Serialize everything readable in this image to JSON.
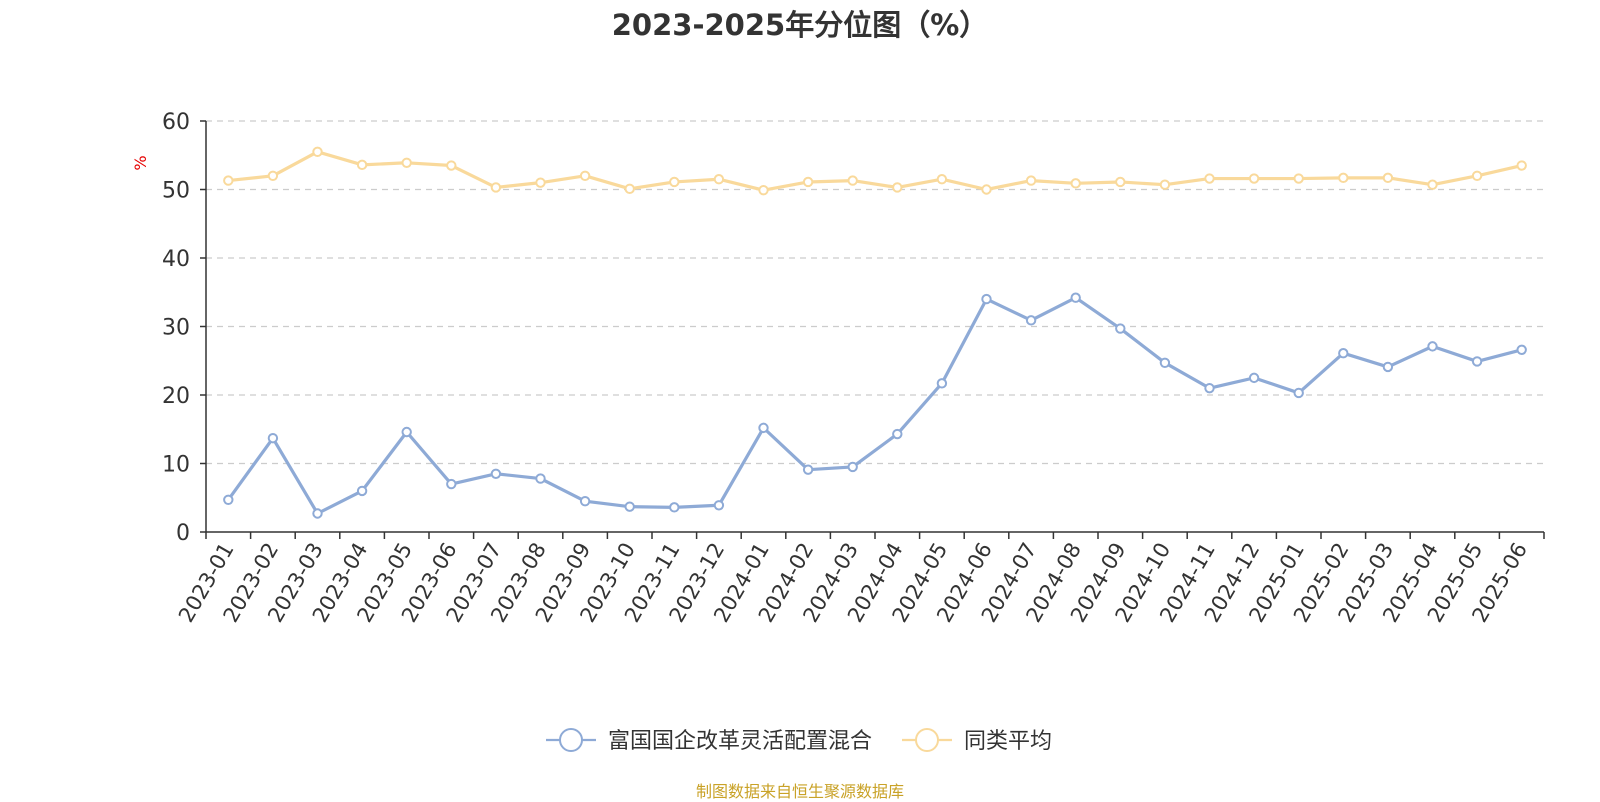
{
  "chart_data": {
    "type": "line",
    "title": "2023-2025年分位图（%）",
    "ylabel": "%",
    "ylim": [
      0,
      60
    ],
    "yticks": [
      0,
      10,
      20,
      30,
      40,
      50,
      60
    ],
    "grid": true,
    "legend_position": "bottom",
    "categories": [
      "2023-01",
      "2023-02",
      "2023-03",
      "2023-04",
      "2023-05",
      "2023-06",
      "2023-07",
      "2023-08",
      "2023-09",
      "2023-10",
      "2023-11",
      "2023-12",
      "2024-01",
      "2024-02",
      "2024-03",
      "2024-04",
      "2024-05",
      "2024-06",
      "2024-07",
      "2024-08",
      "2024-09",
      "2024-10",
      "2024-11",
      "2024-12",
      "2025-01",
      "2025-02",
      "2025-03",
      "2025-04",
      "2025-05",
      "2025-06"
    ],
    "series": [
      {
        "name": "富国国企改革灵活配置混合",
        "color": "#8eaad6",
        "values": [
          4.7,
          13.7,
          2.7,
          6.0,
          14.6,
          7.0,
          8.5,
          7.8,
          4.5,
          3.7,
          3.6,
          3.9,
          15.2,
          9.1,
          9.5,
          14.3,
          21.7,
          34.0,
          30.9,
          34.2,
          29.7,
          24.7,
          21.0,
          22.5,
          20.3,
          26.1,
          24.1,
          27.1,
          24.9,
          26.6
        ]
      },
      {
        "name": "同类平均",
        "color": "#f9d99b",
        "values": [
          51.3,
          52.0,
          55.5,
          53.6,
          53.9,
          53.5,
          50.3,
          51.0,
          52.0,
          50.1,
          51.1,
          51.5,
          49.9,
          51.1,
          51.3,
          50.3,
          51.5,
          50.0,
          51.3,
          50.9,
          51.1,
          50.7,
          51.6,
          51.6,
          51.6,
          51.7,
          51.7,
          50.7,
          52.0,
          53.5
        ]
      }
    ]
  },
  "footer": {
    "source": "制图数据来自恒生聚源数据库"
  }
}
